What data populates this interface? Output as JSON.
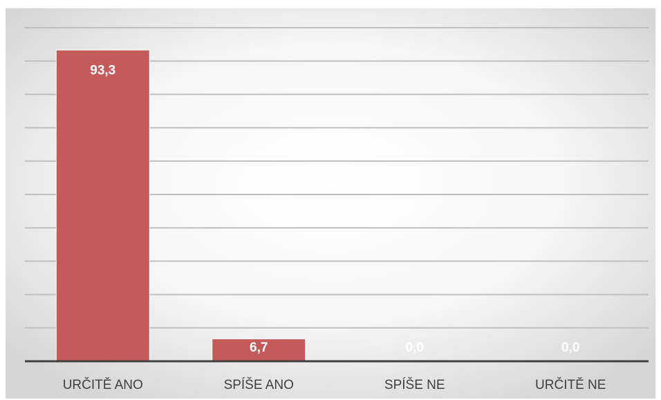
{
  "colors": {
    "bar": "#c55a5a",
    "gridline": "#bfbfbf",
    "axis": "#404040",
    "data_label": "#ffffff",
    "category_label": "#404040"
  },
  "chart_data": {
    "type": "bar",
    "categories": [
      "URČITĚ ANO",
      "SPÍŠE ANO",
      "SPÍŠE NE",
      "URČITĚ NE"
    ],
    "values": [
      93.3,
      6.7,
      0.0,
      0.0
    ],
    "data_labels": [
      "93,3",
      "6,7",
      "0,0",
      "0,0"
    ],
    "ylim": [
      0,
      100
    ],
    "grid": true,
    "legend": "none"
  }
}
